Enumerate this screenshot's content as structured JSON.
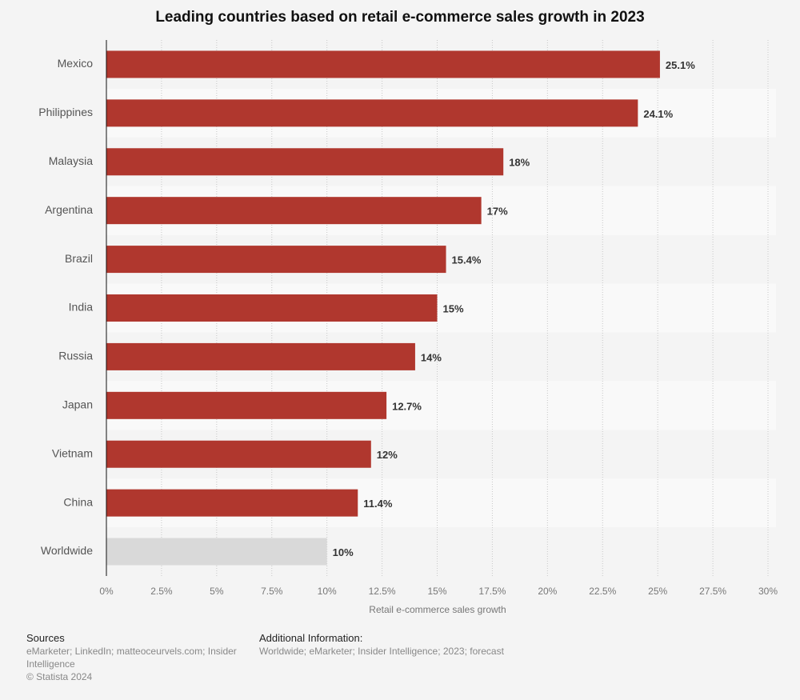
{
  "chart_data": {
    "type": "bar",
    "orientation": "horizontal",
    "title": "Leading countries based on retail e-commerce sales growth in 2023",
    "categories": [
      "Mexico",
      "Philippines",
      "Malaysia",
      "Argentina",
      "Brazil",
      "India",
      "Russia",
      "Japan",
      "Vietnam",
      "China",
      "Worldwide"
    ],
    "values": [
      25.1,
      24.1,
      18,
      17,
      15.4,
      15,
      14,
      12.7,
      12,
      11.4,
      10
    ],
    "value_labels": [
      "25.1%",
      "24.1%",
      "18%",
      "17%",
      "15.4%",
      "15%",
      "14%",
      "12.7%",
      "12%",
      "11.4%",
      "10%"
    ],
    "colors": [
      "#b0372e",
      "#b0372e",
      "#b0372e",
      "#b0372e",
      "#b0372e",
      "#b0372e",
      "#b0372e",
      "#b0372e",
      "#b0372e",
      "#b0372e",
      "#d9d9d9"
    ],
    "xlabel": "Retail e-commerce sales growth",
    "xlim": [
      0,
      30
    ],
    "xticks": [
      {
        "value": 0,
        "label": "0%"
      },
      {
        "value": 2.5,
        "label": "2.5%"
      },
      {
        "value": 5,
        "label": "5%"
      },
      {
        "value": 7.5,
        "label": "7.5%"
      },
      {
        "value": 10,
        "label": "10%"
      },
      {
        "value": 12.5,
        "label": "12.5%"
      },
      {
        "value": 15,
        "label": "15%"
      },
      {
        "value": 17.5,
        "label": "17.5%"
      },
      {
        "value": 20,
        "label": "20%"
      },
      {
        "value": 22.5,
        "label": "22.5%"
      },
      {
        "value": 25,
        "label": "25%"
      },
      {
        "value": 27.5,
        "label": "27.5%"
      },
      {
        "value": 30,
        "label": "30%"
      }
    ],
    "grid": true
  },
  "footer": {
    "sources_title": "Sources",
    "sources": "eMarketer; LinkedIn; matteoceurvels.com; Insider Intelligence",
    "copyright": "© Statista 2024",
    "additional_title": "Additional Information:",
    "additional": "Worldwide; eMarketer; Insider Intelligence; 2023; forecast"
  }
}
